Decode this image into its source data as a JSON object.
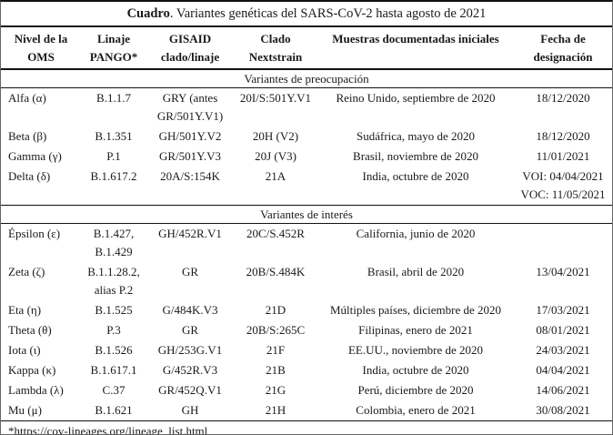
{
  "table": {
    "title": {
      "bold": "Cuadro",
      "rest": ". Variantes genéticas del SARS-CoV-2 hasta agosto de 2021"
    },
    "headers": [
      "Nivel de la\nOMS",
      "Linaje\nPANGO*",
      "GISAID\nclado/linaje",
      "Clado\nNextstrain",
      "Muestras documentadas iniciales",
      "Fecha de\ndesignación"
    ],
    "sections": [
      {
        "label": "Variantes de preocupación",
        "rows": [
          {
            "cells": [
              "Alfa (α)",
              "B.1.1.7",
              "GRY (antes\nGR/501Y.V1)",
              "20I/S:501Y.V1",
              "Reino Unido, septiembre de 2020",
              "18/12/2020"
            ]
          },
          {
            "cells": [
              "Beta (β)",
              "B.1.351",
              "GH/501Y.V2",
              "20H (V2)",
              "Sudáfrica, mayo de 2020",
              "18/12/2020"
            ]
          },
          {
            "cells": [
              "Gamma (γ)",
              "P.1",
              "GR/501Y.V3",
              "20J (V3)",
              "Brasil, noviembre de 2020",
              "11/01/2021"
            ]
          },
          {
            "cells": [
              "Delta (δ)",
              "B.1.617.2",
              "20A/S:154K",
              "21A",
              "India, octubre de 2020",
              "VOI: 04/04/2021\nVOC: 11/05/2021"
            ]
          }
        ]
      },
      {
        "label": "Variantes de interés",
        "rows": [
          {
            "cells": [
              "Épsilon (ε)",
              "B.1.427,\nB.1.429",
              "GH/452R.V1",
              "20C/S.452R",
              "California, junio de 2020",
              ""
            ]
          },
          {
            "cells": [
              "Zeta (ζ)",
              "B.1.1.28.2,\nalias P.2",
              "GR",
              "20B/S.484K",
              "Brasil, abril de 2020",
              "13/04/2021"
            ]
          },
          {
            "cells": [
              "Eta (η)",
              "B.1.525",
              "G/484K.V3",
              "21D",
              "Múltiples países, diciembre de 2020",
              "17/03/2021"
            ]
          },
          {
            "cells": [
              "Theta (θ)",
              "P.3",
              "GR",
              "20B/S:265C",
              "Filipinas, enero de 2021",
              "08/01/2021"
            ]
          },
          {
            "cells": [
              "Iota (ι)",
              "B.1.526",
              "GH/253G.V1",
              "21F",
              "EE.UU., noviembre de 2020",
              "24/03/2021"
            ]
          },
          {
            "cells": [
              "Kappa (κ)",
              "B.1.617.1",
              "G/452R.V3",
              "21B",
              "India, octubre de 2020",
              "04/04/2021"
            ]
          },
          {
            "cells": [
              "Lambda (λ)",
              "C.37",
              "GR/452Q.V1",
              "21G",
              "Perú, diciembre de 2020",
              "14/06/2021"
            ]
          },
          {
            "cells": [
              "Mu (μ)",
              "B.1.621",
              "GH",
              "21H",
              "Colombia, enero de 2021",
              "30/08/2021"
            ]
          }
        ]
      }
    ],
    "footnote": "*https://cov-lineages.org/lineage_list.html"
  }
}
